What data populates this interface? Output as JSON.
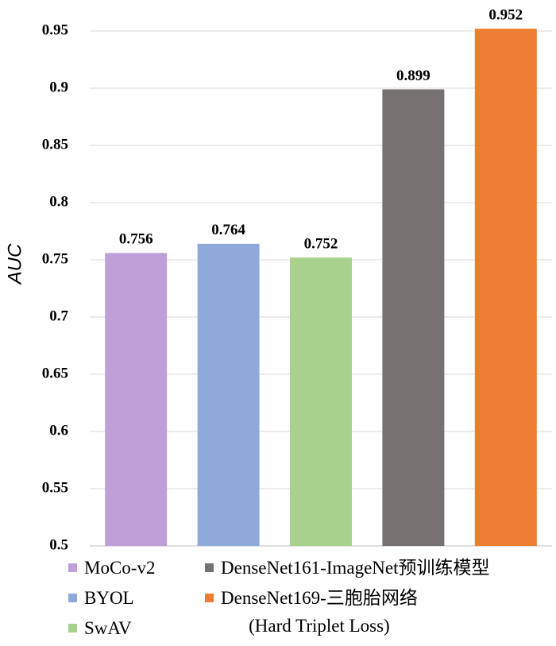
{
  "chart_data": {
    "type": "bar",
    "y_label": "AUC",
    "series": [
      {
        "name": "MoCo-v2",
        "color": "#c09fd8",
        "values": [
          0.756
        ]
      },
      {
        "name": "BYOL",
        "color": "#8eaadb",
        "values": [
          0.764
        ]
      },
      {
        "name": "SwAV",
        "color": "#a9d18e",
        "values": [
          0.752
        ]
      },
      {
        "name": "DenseNet161-ImageNet预训练模型",
        "color": "#767171",
        "values": [
          0.899
        ]
      },
      {
        "name": "DenseNet169-三胞胎网络\n(Hard Triplet Loss)",
        "color": "#ed7d31",
        "values": [
          0.952
        ]
      }
    ],
    "ylim": [
      0.5,
      0.95
    ],
    "yticks": [
      0.5,
      0.55,
      0.6,
      0.65,
      0.7,
      0.75,
      0.8,
      0.85,
      0.9,
      0.95
    ],
    "grid": true
  }
}
